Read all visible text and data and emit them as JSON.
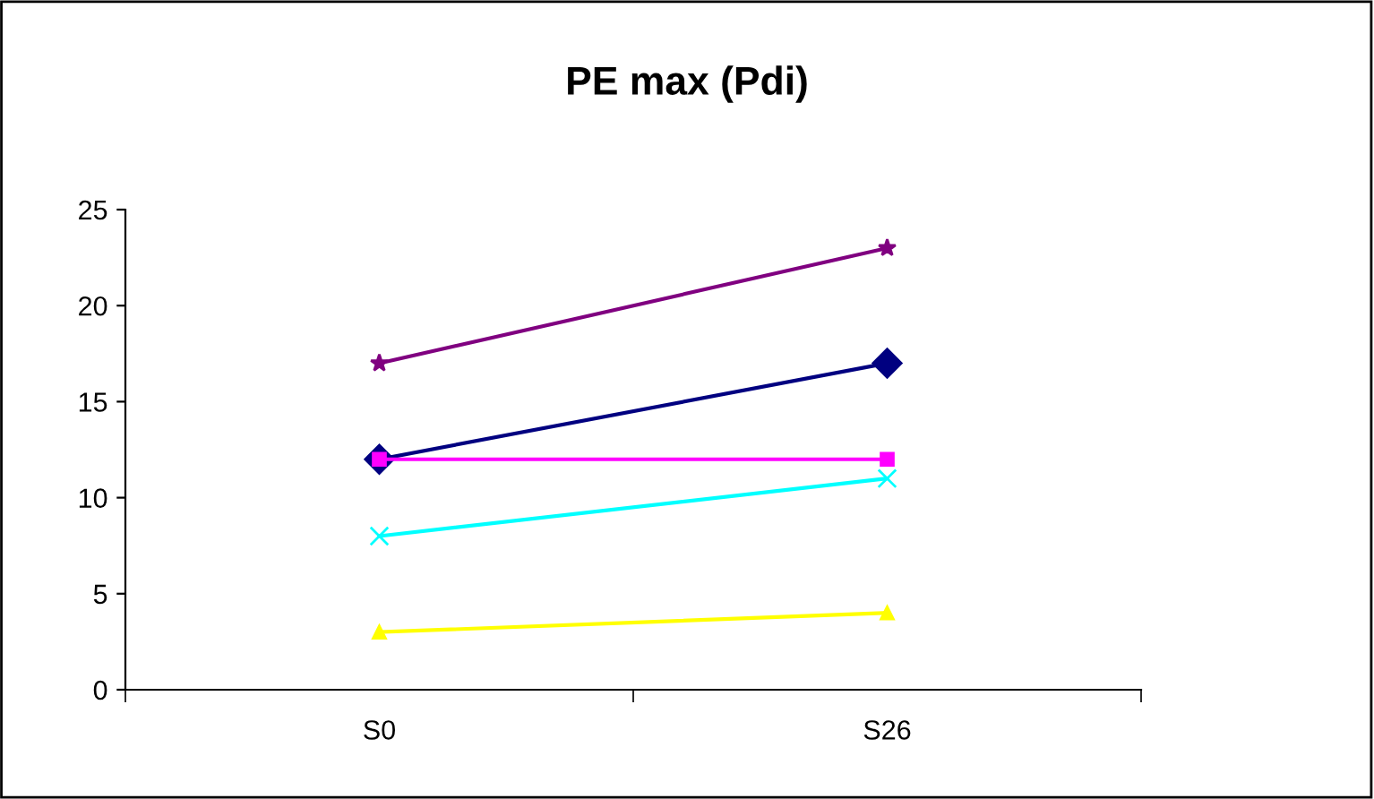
{
  "chart_data": {
    "type": "line",
    "title": "PE max (Pdi)",
    "categories": [
      "S0",
      "S26"
    ],
    "series": [
      {
        "color": "#800080",
        "marker": "star",
        "values": [
          17,
          23
        ]
      },
      {
        "color": "#000080",
        "marker": "diamond",
        "values": [
          12,
          17
        ]
      },
      {
        "color": "#ff00ff",
        "marker": "square",
        "values": [
          12,
          12
        ]
      },
      {
        "color": "#00ffff",
        "marker": "cross",
        "values": [
          8,
          11
        ]
      },
      {
        "color": "#ffff00",
        "marker": "triangle",
        "values": [
          3,
          4
        ]
      }
    ],
    "ylim": [
      0,
      25
    ],
    "yticks": [
      0,
      5,
      10,
      15,
      20,
      25
    ],
    "grid": false,
    "legend": false,
    "line_style": "solid"
  }
}
